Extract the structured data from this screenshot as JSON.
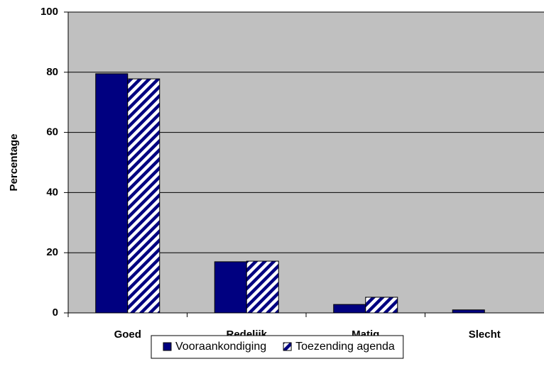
{
  "chart_data": {
    "type": "bar",
    "y_label": "Percentage",
    "categories": [
      "Goed",
      "Redelijk",
      "Matig",
      "Slecht"
    ],
    "series": [
      {
        "name": "Vooraankondiging",
        "color": "#000080",
        "values": [
          79.5,
          17,
          2.8,
          1
        ]
      },
      {
        "name": "Toezending agenda",
        "color": "#000080",
        "pattern": "diagonal-stripes",
        "values": [
          77.8,
          17.2,
          5.2,
          0
        ]
      }
    ],
    "ylim": [
      0,
      100
    ],
    "yticks": [
      0,
      20,
      40,
      60,
      80,
      100
    ],
    "grid": true,
    "legend": "bottom"
  }
}
